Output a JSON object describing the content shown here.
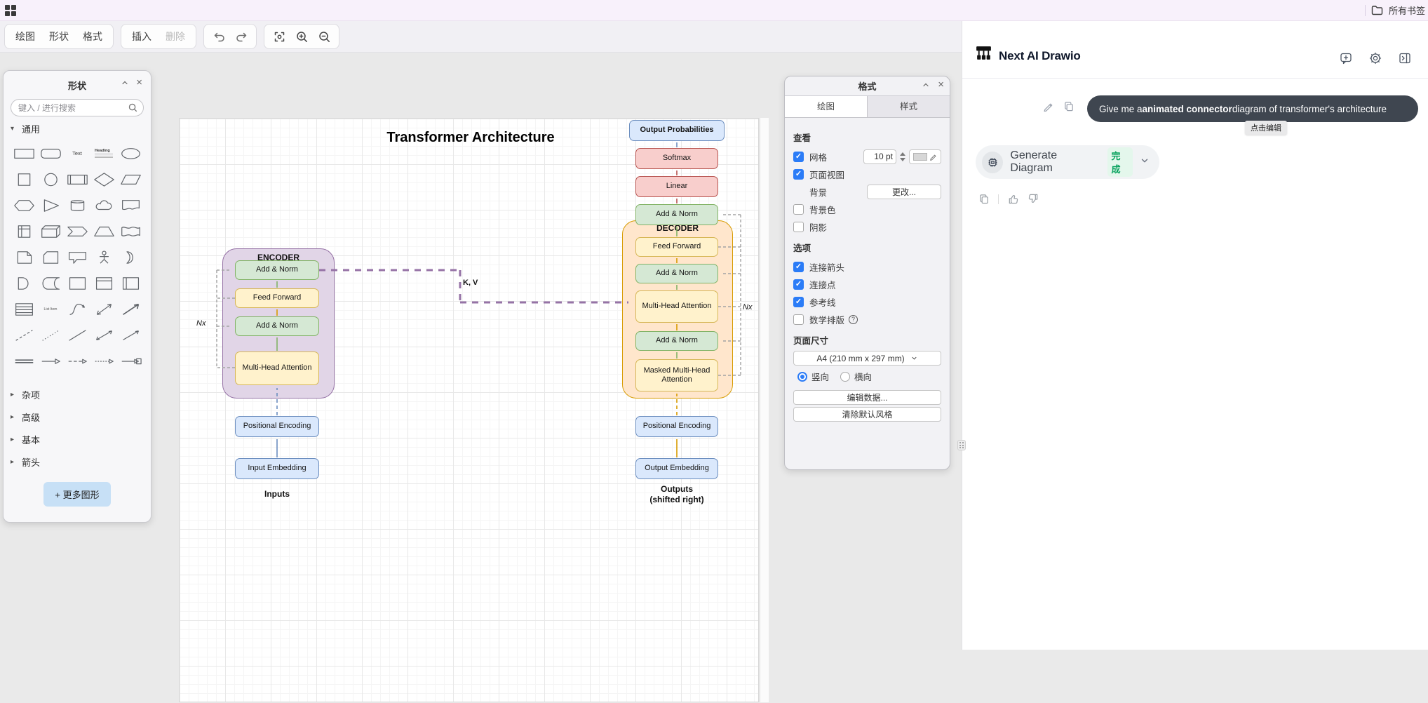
{
  "colors": {
    "blue_fill": "#dae8fc",
    "blue_stroke": "#6c8ebf",
    "green_fill": "#d5e8d4",
    "green_stroke": "#82b366",
    "yellow_fill": "#fff2cc",
    "yellow_stroke": "#d6b656",
    "red_fill": "#f8cecc",
    "red_stroke": "#b85450",
    "purple_fill": "#e1d5e7",
    "purple_stroke": "#9673a6",
    "orange_fill": "#ffe6cc",
    "orange_stroke": "#d79b00",
    "accent_blue": "#2b7cf7",
    "success_green": "#0aa35f"
  },
  "bookmarks_bar": {
    "all_bookmarks": "所有书签"
  },
  "toolbar": {
    "draw": "绘图",
    "shapes": "形状",
    "format": "格式",
    "insert": "插入",
    "delete": "删除"
  },
  "shapes_panel": {
    "title": "形状",
    "search_placeholder": "键入 / 进行搜索",
    "section_general": "通用",
    "section_misc": "杂项",
    "section_advanced": "高级",
    "section_basic": "基本",
    "section_arrows": "箭头",
    "more_shapes": "+ 更多图形",
    "text_label": "Text",
    "heading_label": "Heading",
    "list_item_label": "List Item",
    "general_shapes": [
      "rectangle",
      "rounded-rectangle",
      "text",
      "heading",
      "ellipse",
      "square",
      "circle",
      "process",
      "diamond",
      "parallelogram",
      "hexagon",
      "triangle",
      "cylinder",
      "cloud",
      "document",
      "internal-storage",
      "cube",
      "step",
      "trapezoid",
      "tape",
      "note",
      "card",
      "callout",
      "actor",
      "or",
      "and",
      "data-storage",
      "container",
      "frame",
      "vertical-container",
      "list",
      "list-item",
      "curve",
      "bidirectional-arrow",
      "arrow",
      "dashed-line",
      "dotted-line",
      "line",
      "bidirectional-connector",
      "directional-connector",
      "link",
      "arrow-link",
      "dashed-edge",
      "dashed-edge-2",
      "labeled-edge"
    ]
  },
  "format_panel": {
    "title": "格式",
    "tab_diagram": "绘图",
    "tab_style": "样式",
    "section_view": "查看",
    "grid": "网格",
    "grid_size": "10 pt",
    "page_view": "页面视图",
    "background": "背景",
    "change_button": "更改...",
    "background_color": "背景色",
    "shadow": "阴影",
    "section_options": "选项",
    "connection_arrows": "连接箭头",
    "connection_points": "连接点",
    "guides": "参考线",
    "math_typesetting": "数学排版",
    "section_page_size": "页面尺寸",
    "page_size_value": "A4 (210 mm x 297 mm)",
    "portrait": "竖向",
    "landscape": "横向",
    "edit_data_button": "编辑数据...",
    "clear_default_style_button": "清除默认风格"
  },
  "diagram": {
    "title": "Transformer Architecture",
    "encoder_label": "ENCODER",
    "decoder_label": "DECODER",
    "output_probabilities": "Output Probabilities",
    "softmax": "Softmax",
    "linear": "Linear",
    "add_norm": "Add & Norm",
    "feed_forward": "Feed Forward",
    "multi_head_attention": "Multi-Head Attention",
    "masked_multi_head_attention": "Masked Multi-Head Attention",
    "positional_encoding": "Positional Encoding",
    "input_embedding": "Input Embedding",
    "output_embedding": "Output Embedding",
    "inputs_label": "Inputs",
    "outputs_label_line1": "Outputs",
    "outputs_label_line2": "(shifted right)",
    "kv_label": "K, V",
    "nx_label": "Nx"
  },
  "ai_panel": {
    "title": "Next AI Drawio",
    "user_message_prefix": "Give me a ",
    "user_message_bold": "animated connector",
    "user_message_suffix": " diagram of transformer's architecture",
    "edit_tooltip": "点击编辑",
    "tool_name": "Generate Diagram",
    "tool_status": "完成"
  }
}
